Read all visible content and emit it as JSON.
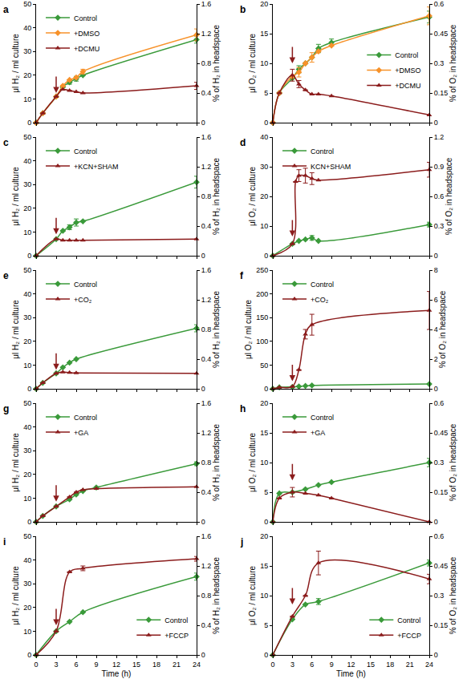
{
  "chart_data": [
    {
      "type": "line",
      "label": "a",
      "y_label": "μl H₂ / ml culture",
      "y2_label": "% of H₂ in headspace",
      "x": [
        0,
        1,
        3,
        4,
        5,
        6,
        7,
        24
      ],
      "series": [
        {
          "name": "Control",
          "color": "#3a9a3a",
          "marker": "diamond",
          "values": [
            0,
            4,
            11,
            15,
            17,
            18.5,
            20,
            35
          ],
          "errors": [
            null,
            null,
            null,
            null,
            0.8,
            1,
            null,
            1.5
          ]
        },
        {
          "name": "+DMSO",
          "color": "#f7922a",
          "marker": "diamond",
          "values": [
            0,
            4,
            11,
            15.5,
            18,
            19,
            21.5,
            37
          ],
          "errors": [
            null,
            null,
            null,
            null,
            null,
            null,
            1,
            2.5
          ]
        },
        {
          "name": "+DCMU",
          "color": "#8b1c1c",
          "marker": "triangle",
          "values": [
            0,
            4,
            11,
            14,
            13.5,
            13,
            12.5,
            15.5
          ],
          "errors": [
            null,
            null,
            null,
            null,
            null,
            null,
            null,
            1.5
          ]
        }
      ],
      "arrow": {
        "x": 3,
        "y": 12.5
      },
      "xlim": [
        0,
        24
      ],
      "xticks": [
        0,
        3,
        6,
        9,
        12,
        15,
        18,
        21,
        24
      ],
      "ylim": [
        0,
        50
      ],
      "yticks": [
        0,
        10,
        20,
        30,
        40,
        50
      ],
      "y2lim": [
        0,
        1.6
      ],
      "y2ticks": [
        0,
        0.4,
        0.8,
        1.2,
        1.6
      ],
      "legend": "upper left",
      "grid": false,
      "tick_labels": "y"
    },
    {
      "type": "line",
      "label": "b",
      "y_label": "μl O₂ / ml culture",
      "y2_label": "% of O₂ in headspace",
      "x": [
        0,
        1,
        3,
        4,
        5,
        6,
        7,
        9,
        24
      ],
      "series": [
        {
          "name": "Control",
          "color": "#3a9a3a",
          "marker": "diamond",
          "values": [
            0,
            5,
            7.5,
            9,
            10,
            11,
            12.5,
            13.5,
            17.8
          ],
          "errors": [
            null,
            null,
            null,
            0.6,
            null,
            null,
            0.7,
            0.6,
            1
          ]
        },
        {
          "name": "+DMSO",
          "color": "#f7922a",
          "marker": "diamond",
          "values": [
            0,
            5,
            7.8,
            8.5,
            10,
            11,
            12,
            13,
            18
          ],
          "errors": [
            null,
            null,
            null,
            0.8,
            null,
            0.8,
            null,
            null,
            1.5
          ]
        },
        {
          "name": "+DCMU",
          "color": "#8b1c1c",
          "marker": "triangle",
          "values": [
            0,
            5,
            8,
            6.5,
            5.5,
            4.8,
            4.8,
            4.5,
            1.3
          ],
          "errors": [
            null,
            null,
            1,
            0.6,
            null,
            null,
            null,
            null,
            null
          ]
        }
      ],
      "arrow": {
        "x": 3,
        "y": 10
      },
      "xlim": [
        0,
        24
      ],
      "xticks": [
        0,
        3,
        6,
        9,
        12,
        15,
        18,
        21,
        24
      ],
      "ylim": [
        0,
        20
      ],
      "yticks": [
        0,
        5,
        10,
        15,
        20
      ],
      "y2lim": [
        0,
        0.6
      ],
      "y2ticks": [
        0,
        0.15,
        0.3,
        0.45,
        0.6
      ],
      "legend": "right",
      "grid": false,
      "tick_labels": "y"
    },
    {
      "type": "line",
      "label": "c",
      "y_label": "μl H₂ / ml culture",
      "y2_label": "% of H₂ in headspace",
      "x": [
        0,
        3,
        4,
        5,
        6,
        7,
        24
      ],
      "series": [
        {
          "name": "Control",
          "color": "#3a9a3a",
          "marker": "diamond",
          "values": [
            0,
            7,
            10.5,
            12,
            14,
            14.5,
            31
          ],
          "errors": [
            null,
            null,
            null,
            1,
            1.5,
            null,
            2.5
          ]
        },
        {
          "name": "+KCN+SHAM",
          "color": "#8b1c1c",
          "marker": "triangle",
          "values": [
            0,
            7,
            6.5,
            6.5,
            6.5,
            6.5,
            7
          ],
          "errors": [
            null,
            null,
            null,
            null,
            null,
            null,
            null
          ]
        }
      ],
      "arrow": {
        "x": 3,
        "y": 9
      },
      "xlim": [
        0,
        24
      ],
      "xticks": [
        0,
        3,
        6,
        9,
        12,
        15,
        18,
        21,
        24
      ],
      "ylim": [
        0,
        50
      ],
      "yticks": [
        0,
        10,
        20,
        30,
        40,
        50
      ],
      "y2lim": [
        0,
        1.6
      ],
      "y2ticks": [
        0,
        0.4,
        0.8,
        1.2,
        1.6
      ],
      "legend": "upper left",
      "grid": false,
      "tick_labels": "y"
    },
    {
      "type": "line",
      "label": "d",
      "y_label": "μl O₂ / ml culture",
      "y2_label": "% of O₂ in headspace",
      "x": [
        0,
        3,
        4,
        5,
        6,
        7,
        24
      ],
      "series": [
        {
          "name": "Control",
          "color": "#3a9a3a",
          "marker": "diamond",
          "values": [
            0,
            4,
            5,
            5.5,
            6,
            5,
            10.5
          ],
          "errors": [
            null,
            null,
            null,
            null,
            0.8,
            null,
            0.8
          ]
        },
        {
          "name": "KCN+SHAM",
          "color": "#8b1c1c",
          "marker": "triangle",
          "x": [
            0,
            3,
            3.5,
            4,
            5,
            6,
            7,
            24
          ],
          "values": [
            0,
            4,
            25,
            27,
            27,
            26,
            25.5,
            29
          ],
          "errors": [
            null,
            null,
            null,
            2,
            2.5,
            2,
            null,
            2.5
          ]
        }
      ],
      "arrow": {
        "x": 3,
        "y": 6.5
      },
      "xlim": [
        0,
        24
      ],
      "xticks": [
        0,
        3,
        6,
        9,
        12,
        15,
        18,
        21,
        24
      ],
      "ylim": [
        0,
        40
      ],
      "yticks": [
        0,
        10,
        20,
        30,
        40
      ],
      "y2lim": [
        0,
        1.2
      ],
      "y2ticks": [
        0,
        0.3,
        0.6,
        0.9,
        1.2
      ],
      "legend": "upper left",
      "grid": false,
      "tick_labels": "y"
    },
    {
      "type": "line",
      "label": "e",
      "y_label": "μl H₂ / ml culture",
      "y2_label": "% of H₂ in headspace",
      "x": [
        0,
        1,
        3,
        4,
        5,
        6,
        24
      ],
      "series": [
        {
          "name": "Control",
          "color": "#3a9a3a",
          "marker": "diamond",
          "values": [
            0,
            2.5,
            6.5,
            9,
            11,
            12.5,
            25.5
          ],
          "errors": [
            null,
            null,
            null,
            null,
            null,
            null,
            1.5
          ]
        },
        {
          "name": "+CO₂",
          "color": "#8b1c1c",
          "marker": "triangle",
          "values": [
            0,
            2.5,
            6.5,
            7,
            6.8,
            6.7,
            6.5
          ],
          "errors": [
            null,
            null,
            null,
            null,
            null,
            null,
            null
          ]
        }
      ],
      "arrow": {
        "x": 3,
        "y": 8
      },
      "xlim": [
        0,
        24
      ],
      "xticks": [
        0,
        3,
        6,
        9,
        12,
        15,
        18,
        21,
        24
      ],
      "ylim": [
        0,
        50
      ],
      "yticks": [
        0,
        10,
        20,
        30,
        40,
        50
      ],
      "y2lim": [
        0,
        1.6
      ],
      "y2ticks": [
        0,
        0.4,
        0.8,
        1.2,
        1.6
      ],
      "legend": "upper left",
      "grid": false,
      "tick_labels": "y"
    },
    {
      "type": "line",
      "label": "f",
      "y_label": "μl O₂ / ml culture",
      "y2_label": "% of O₂ in headspace",
      "x": [
        0,
        1,
        3,
        4,
        5,
        6,
        24
      ],
      "series": [
        {
          "name": "Control",
          "color": "#3a9a3a",
          "marker": "diamond",
          "values": [
            0,
            3,
            4,
            5,
            6,
            7,
            10
          ],
          "errors": [
            null,
            null,
            null,
            null,
            null,
            null,
            null
          ]
        },
        {
          "name": "+CO₂",
          "color": "#8b1c1c",
          "marker": "triangle",
          "values": [
            0,
            3,
            4.5,
            40,
            115,
            135,
            165
          ],
          "errors": [
            null,
            null,
            null,
            null,
            10,
            22,
            40
          ]
        }
      ],
      "arrow": {
        "x": 3,
        "y": 16
      },
      "xlim": [
        0,
        24
      ],
      "xticks": [
        0,
        3,
        6,
        9,
        12,
        15,
        18,
        21,
        24
      ],
      "ylim": [
        0,
        250
      ],
      "yticks": [
        0,
        50,
        100,
        150,
        200,
        250
      ],
      "y2lim": [
        0,
        8
      ],
      "y2ticks": [
        0,
        2,
        4,
        6,
        8
      ],
      "legend": "upper left",
      "grid": false,
      "tick_labels": "y"
    },
    {
      "type": "line",
      "label": "g",
      "y_label": "μl H₂ / ml culture",
      "y2_label": "% of H₂ in headspace",
      "x": [
        0,
        1,
        3,
        5,
        6,
        7,
        9,
        24
      ],
      "series": [
        {
          "name": "Control",
          "color": "#3a9a3a",
          "marker": "diamond",
          "values": [
            0,
            2.5,
            6.5,
            9.5,
            11.5,
            13,
            14.5,
            24.5
          ],
          "errors": [
            null,
            null,
            null,
            null,
            null,
            null,
            null,
            0.8
          ]
        },
        {
          "name": "+GA",
          "color": "#8b1c1c",
          "marker": "triangle",
          "values": [
            0,
            2.5,
            6.5,
            10.5,
            12.5,
            13.5,
            14,
            14.8
          ],
          "errors": [
            null,
            null,
            null,
            null,
            null,
            null,
            null,
            null
          ]
        }
      ],
      "arrow": {
        "x": 3,
        "y": 8.5
      },
      "xlim": [
        0,
        24
      ],
      "xticks": [
        0,
        3,
        6,
        9,
        12,
        15,
        18,
        21,
        24
      ],
      "ylim": [
        0,
        50
      ],
      "yticks": [
        0,
        10,
        20,
        30,
        40,
        50
      ],
      "y2lim": [
        0,
        1.6
      ],
      "y2ticks": [
        0,
        0.4,
        0.8,
        1.2,
        1.6
      ],
      "legend": "upper left",
      "grid": false,
      "tick_labels": "y"
    },
    {
      "type": "line",
      "label": "h",
      "y_label": "μl O₂ / ml culture",
      "y2_label": "% of O₂ in headspace",
      "x": [
        0,
        1,
        3,
        5,
        7,
        9,
        24
      ],
      "series": [
        {
          "name": "Control",
          "color": "#3a9a3a",
          "marker": "diamond",
          "values": [
            0,
            4.8,
            5,
            5.5,
            6.2,
            6.7,
            10
          ],
          "errors": [
            null,
            null,
            null,
            null,
            null,
            null,
            0.7
          ]
        },
        {
          "name": "+GA",
          "color": "#8b1c1c",
          "marker": "triangle",
          "values": [
            0,
            4,
            5,
            4.8,
            4.5,
            4,
            0
          ],
          "errors": [
            null,
            null,
            0.8,
            null,
            null,
            null,
            null
          ]
        }
      ],
      "arrow": {
        "x": 3,
        "y": 7
      },
      "xlim": [
        0,
        24
      ],
      "xticks": [
        0,
        3,
        6,
        9,
        12,
        15,
        18,
        21,
        24
      ],
      "ylim": [
        0,
        20
      ],
      "yticks": [
        0,
        5,
        10,
        15,
        20
      ],
      "y2lim": [
        0,
        0.6
      ],
      "y2ticks": [
        0,
        0.15,
        0.3,
        0.45,
        0.6
      ],
      "legend": "upper left",
      "grid": false,
      "tick_labels": "y"
    },
    {
      "type": "line",
      "label": "i",
      "y_label": "μl H₂ / ml culture",
      "y2_label": "% of H₂ in headspace",
      "x_label": "Time (h)",
      "x": [
        0,
        3,
        5,
        7,
        24
      ],
      "series": [
        {
          "name": "Control",
          "color": "#3a9a3a",
          "marker": "diamond",
          "values": [
            0,
            10,
            14,
            18,
            33
          ],
          "errors": [
            null,
            null,
            null,
            null,
            1.5
          ]
        },
        {
          "name": "+FCCP",
          "color": "#8b1c1c",
          "marker": "triangle",
          "values": [
            0,
            10,
            35,
            36.5,
            40.5
          ],
          "errors": [
            null,
            null,
            null,
            1,
            1
          ]
        }
      ],
      "arrow": {
        "x": 3,
        "y": 12.5
      },
      "xlim": [
        0,
        24
      ],
      "xticks": [
        0,
        3,
        6,
        9,
        12,
        15,
        18,
        21,
        24
      ],
      "ylim": [
        0,
        50
      ],
      "yticks": [
        0,
        10,
        20,
        30,
        40,
        50
      ],
      "y2lim": [
        0,
        1.6
      ],
      "y2ticks": [
        0,
        0.4,
        0.8,
        1.2,
        1.6
      ],
      "legend": "lower right",
      "grid": false
    },
    {
      "type": "line",
      "label": "j",
      "y_label": "μl O₂ / ml culture",
      "y2_label": "% of O₂ in headspace",
      "x_label": "Time (h)",
      "x": [
        0,
        3,
        5,
        7,
        24
      ],
      "series": [
        {
          "name": "Control",
          "color": "#3a9a3a",
          "marker": "diamond",
          "values": [
            0,
            6,
            8.5,
            9,
            15.5
          ],
          "errors": [
            null,
            null,
            null,
            0.5,
            0.5
          ]
        },
        {
          "name": "+FCCP",
          "color": "#8b1c1c",
          "marker": "triangle",
          "values": [
            0,
            6.5,
            10,
            15.5,
            12.8
          ],
          "errors": [
            null,
            null,
            null,
            2,
            0.8
          ]
        }
      ],
      "arrow": {
        "x": 3,
        "y": 8.5
      },
      "xlim": [
        0,
        24
      ],
      "xticks": [
        0,
        3,
        6,
        9,
        12,
        15,
        18,
        21,
        24
      ],
      "ylim": [
        0,
        20
      ],
      "yticks": [
        0,
        5,
        10,
        15,
        20
      ],
      "y2lim": [
        0,
        0.6
      ],
      "y2ticks": [
        0,
        0.15,
        0.3,
        0.45,
        0.6
      ],
      "legend": "lower right",
      "grid": false
    }
  ]
}
